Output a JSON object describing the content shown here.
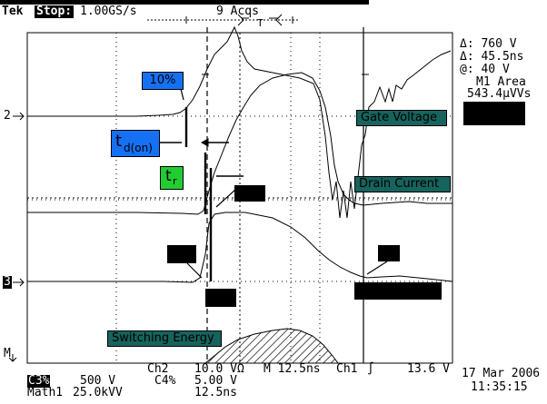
{
  "header": {
    "brand": "Tek",
    "run_state": "Stop:",
    "sample_rate": "1.00GS/s",
    "acquisitions": "9 Acqs",
    "trigger_marker": "T"
  },
  "markers": {
    "channel2": "2",
    "channel3": "3",
    "math": "M"
  },
  "cursor_readout": {
    "delta_v": "Δ: 760 V",
    "delta_t": "Δ: 45.5ns",
    "at_v": "@: 40 V",
    "meas_label": "M1 Area",
    "meas_value": "543.4μVVs"
  },
  "annotations": {
    "ten_percent": "10%",
    "td_main": "t",
    "td_sub": "d(on)",
    "tr_main": "t",
    "tr_sub": "r",
    "gate_voltage": "Gate Voltage",
    "drain_current": "Drain Current",
    "switching_energy": "Switching Energy"
  },
  "footer": {
    "ch3_label": "C3%",
    "ch3_scale": "500 V",
    "ch2_label": "Ch2",
    "ch2_scale": "10.0 VΩ",
    "c4_label": "C4%",
    "c4_scale": "5.00 V",
    "timebase": "M 12.5ns",
    "trigger_source": "Ch1",
    "trigger_slope": "∫",
    "trigger_level": "13.6 V",
    "math_label": "Math1",
    "math_scale": "25.0kVV",
    "math_time": "12.5ns",
    "date": "17 Mar 2006",
    "time": "11:35:15"
  },
  "colors": {
    "blue_label": "#1570f4",
    "green_label": "#22cc33",
    "teal_label": "#17635d"
  }
}
